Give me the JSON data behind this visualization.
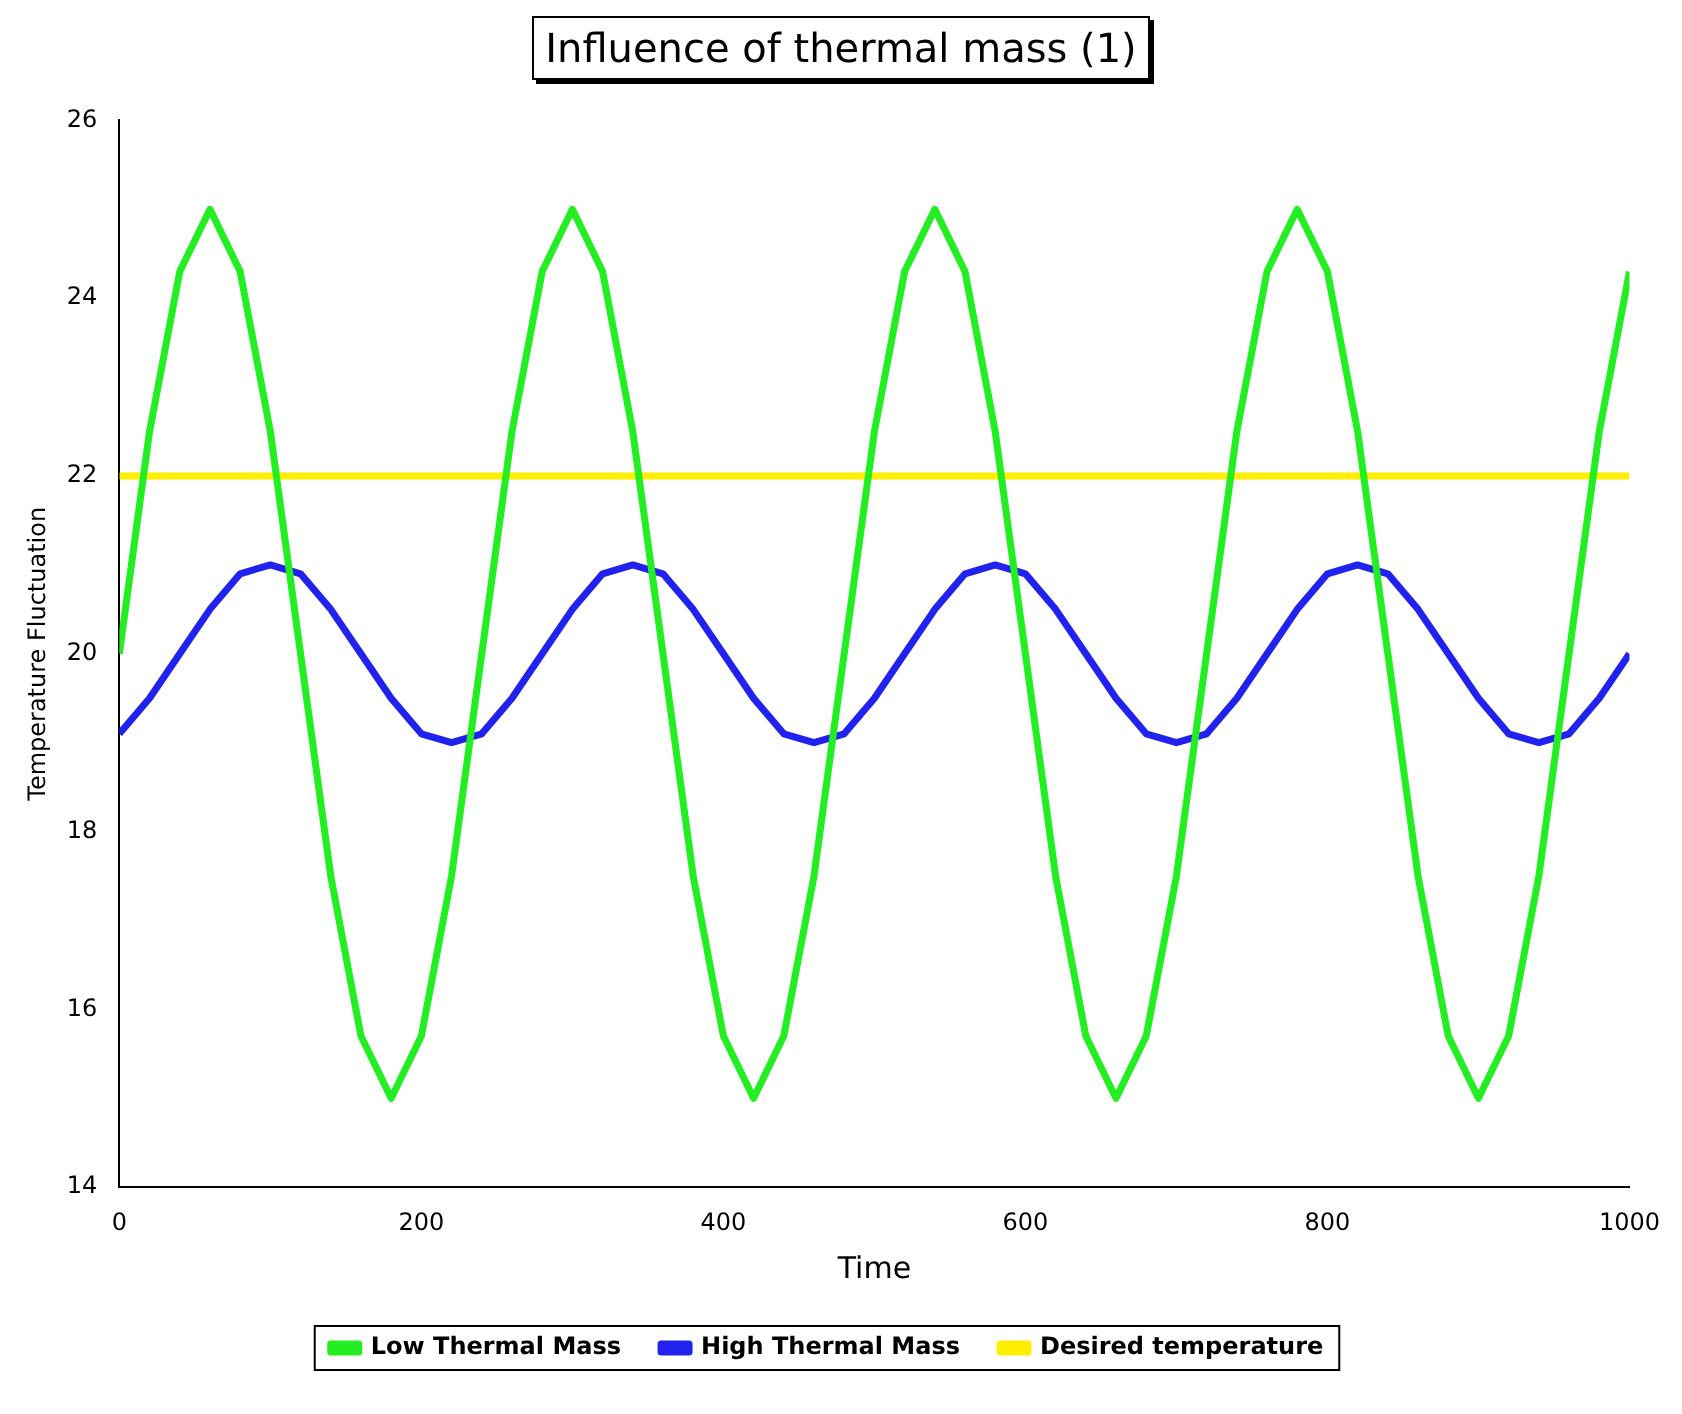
{
  "chart_data": {
    "type": "line",
    "title": "Influence of thermal mass (1)",
    "xlabel": "Time",
    "ylabel": "Temperature Fluctuation",
    "x": [
      0,
      20,
      40,
      60,
      80,
      100,
      120,
      140,
      160,
      180,
      200,
      220,
      240,
      260,
      280,
      300,
      320,
      340,
      360,
      380,
      400,
      420,
      440,
      460,
      480,
      500,
      520,
      540,
      560,
      580,
      600,
      620,
      640,
      660,
      680,
      700,
      720,
      740,
      760,
      780,
      800,
      820,
      840,
      860,
      880,
      900,
      920,
      940,
      960,
      980,
      1000
    ],
    "series": [
      {
        "name": "Low Thermal Mass",
        "color": "#22ee22",
        "values": [
          20,
          22.5,
          24.3,
          25,
          24.3,
          22.5,
          20,
          17.5,
          15.7,
          15,
          15.7,
          17.5,
          20,
          22.5,
          24.3,
          25,
          24.3,
          22.5,
          20,
          17.5,
          15.7,
          15,
          15.7,
          17.5,
          20,
          22.5,
          24.3,
          25,
          24.3,
          22.5,
          20,
          17.5,
          15.7,
          15,
          15.7,
          17.5,
          20,
          22.5,
          24.3,
          25,
          24.3,
          22.5,
          20,
          17.5,
          15.7,
          15,
          15.7,
          17.5,
          20,
          22.5,
          24.3
        ]
      },
      {
        "name": "High Thermal Mass",
        "color": "#2222ee",
        "values": [
          19.1,
          19.5,
          20,
          20.5,
          20.9,
          21,
          20.9,
          20.5,
          20,
          19.5,
          19.1,
          19,
          19.1,
          19.5,
          20,
          20.5,
          20.9,
          21,
          20.9,
          20.5,
          20,
          19.5,
          19.1,
          19,
          19.1,
          19.5,
          20,
          20.5,
          20.9,
          21,
          20.9,
          20.5,
          20,
          19.5,
          19.1,
          19,
          19.1,
          19.5,
          20,
          20.5,
          20.9,
          21,
          20.9,
          20.5,
          20,
          19.5,
          19.1,
          19,
          19.1,
          19.5,
          20
        ]
      },
      {
        "name": "Desired temperature",
        "color": "#ffee00",
        "x": [
          0,
          1000
        ],
        "values": [
          22,
          22
        ]
      }
    ],
    "xlim": [
      0,
      1000
    ],
    "xticks": [
      0,
      200,
      400,
      600,
      800,
      1000
    ],
    "ylim": [
      14,
      26
    ],
    "yticks": [
      14,
      16,
      18,
      20,
      22,
      24,
      26
    ],
    "grid": false,
    "legend": "bottom",
    "marker": "none",
    "line_style": "solid"
  }
}
